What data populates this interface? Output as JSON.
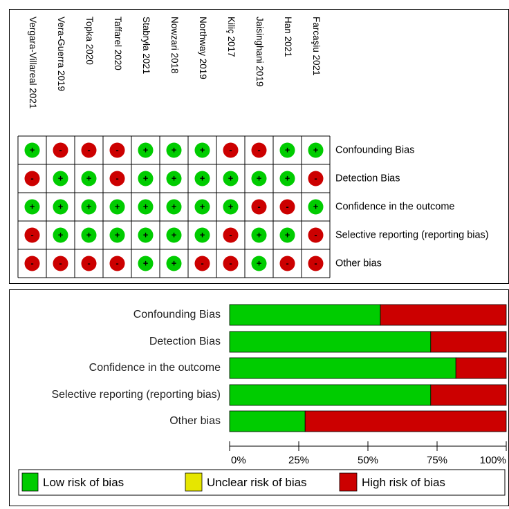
{
  "chart_data": [
    {
      "type": "table",
      "studies": [
        "Vergara-Villareal 2021",
        "Vera-Guerra 2019",
        "Topka 2020",
        "Taffarel 2020",
        "Stabryła 2021",
        "Nowzari 2018",
        "Northway 2019",
        "Kiliç 2017",
        "Jaisinghani 2019",
        "Han 2021",
        "Farcaşiu 2021"
      ],
      "domains": [
        "Confounding Bias",
        "Detection Bias",
        "Confidence in the outcome",
        "Selective reporting (reporting bias)",
        "Other bias"
      ],
      "judgements": [
        [
          "low",
          "high",
          "high",
          "high",
          "low",
          "low",
          "low",
          "high",
          "high",
          "low",
          "low"
        ],
        [
          "high",
          "low",
          "low",
          "high",
          "low",
          "low",
          "low",
          "low",
          "low",
          "low",
          "high"
        ],
        [
          "low",
          "low",
          "low",
          "low",
          "low",
          "low",
          "low",
          "low",
          "high",
          "high",
          "low"
        ],
        [
          "high",
          "low",
          "low",
          "low",
          "low",
          "low",
          "low",
          "high",
          "low",
          "low",
          "high"
        ],
        [
          "high",
          "high",
          "high",
          "high",
          "low",
          "low",
          "high",
          "high",
          "low",
          "high",
          "high"
        ]
      ],
      "symbols": {
        "low": "+",
        "high": "-"
      },
      "colors": {
        "low": "#00cc00",
        "high": "#cc0000"
      }
    },
    {
      "type": "bar",
      "orientation": "horizontal",
      "stacked": true,
      "categories": [
        "Confounding Bias",
        "Detection Bias",
        "Confidence in the outcome",
        "Selective reporting (reporting bias)",
        "Other bias"
      ],
      "series": [
        {
          "name": "Low risk of bias",
          "color": "#00cc00",
          "values": [
            54.5,
            72.7,
            81.8,
            72.7,
            27.3
          ]
        },
        {
          "name": "Unclear risk of bias",
          "color": "#e6e600",
          "values": [
            0,
            0,
            0,
            0,
            0
          ]
        },
        {
          "name": "High risk of bias",
          "color": "#cc0000",
          "values": [
            45.5,
            27.3,
            18.2,
            27.3,
            72.7
          ]
        }
      ],
      "xlim": [
        0,
        100
      ],
      "xticks": [
        "0%",
        "25%",
        "50%",
        "75%",
        "100%"
      ],
      "legend_position": "bottom"
    }
  ]
}
